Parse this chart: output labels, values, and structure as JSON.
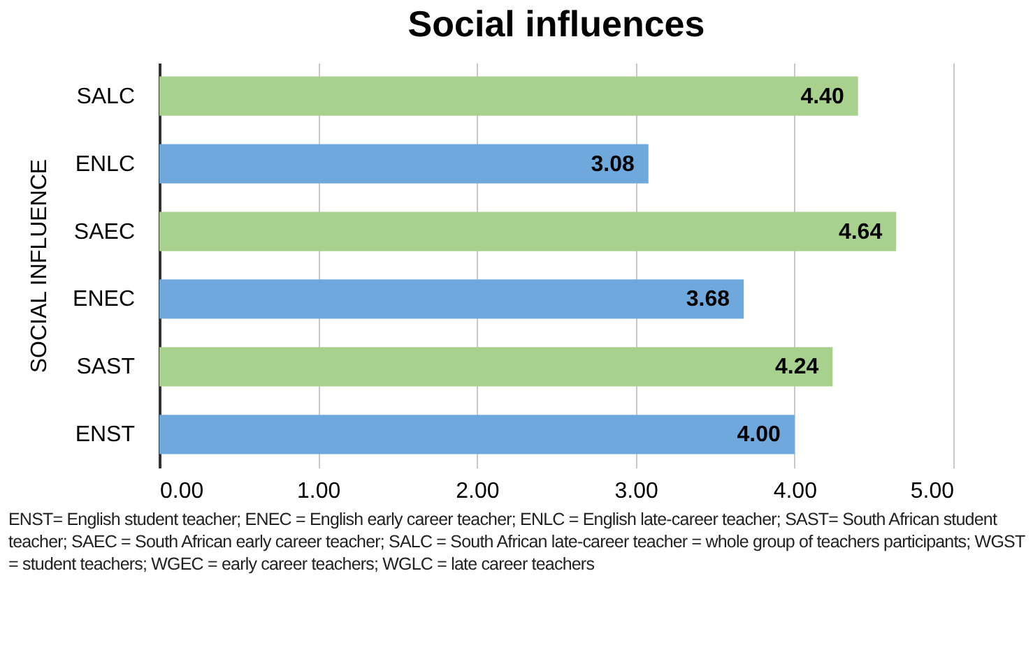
{
  "chart_data": {
    "type": "bar",
    "orientation": "horizontal",
    "title": "Social influences",
    "ylabel": "SOCIAL INFLUENCE",
    "categories": [
      "SALC",
      "ENLC",
      "SAEC",
      "ENEC",
      "SAST",
      "ENST"
    ],
    "values": [
      4.4,
      3.08,
      4.64,
      3.68,
      4.24,
      4.0
    ],
    "value_labels": [
      "4.40",
      "3.08",
      "4.64",
      "3.68",
      "4.24",
      "4.00"
    ],
    "colors": [
      "#a9d18e",
      "#6fa8dc",
      "#a9d18e",
      "#6fa8dc",
      "#a9d18e",
      "#6fa8dc"
    ],
    "xlim": [
      0,
      5
    ],
    "xticks": [
      {
        "value": 0,
        "label": "0.00"
      },
      {
        "value": 1,
        "label": "1.00"
      },
      {
        "value": 2,
        "label": "2.00"
      },
      {
        "value": 3,
        "label": "3.00"
      },
      {
        "value": 4,
        "label": "4.00"
      },
      {
        "value": 5,
        "label": "5.00"
      }
    ],
    "grid": "x",
    "legend": false,
    "annotations": [
      "ENST= English student teacher; ENEC = English early career teacher; ENLC = English late-career teacher; SAST= South African student teacher; SAEC = South African early career teacher; SALC = South African late-career teacher = whole group of teachers participants; WGST = student teachers; WGEC = early career teachers; WGLC = late career teachers"
    ]
  }
}
